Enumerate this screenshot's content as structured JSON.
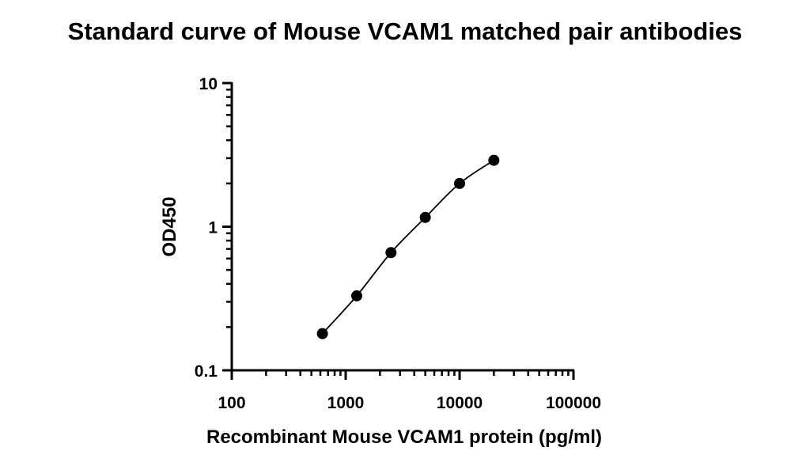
{
  "chart_data": {
    "type": "scatter",
    "title": "Standard curve of Mouse VCAM1 matched pair antibodies",
    "xlabel": "Recombinant Mouse VCAM1 protein (pg/ml)",
    "ylabel": "OD450",
    "xscale": "log",
    "yscale": "log",
    "xlim": [
      100,
      100000
    ],
    "ylim": [
      0.1,
      10
    ],
    "xticks": [
      "100",
      "1000",
      "10000",
      "100000"
    ],
    "yticks": [
      "0.1",
      "1",
      "10"
    ],
    "series": [
      {
        "name": "Standard curve",
        "x": [
          625,
          1250,
          2500,
          5000,
          10000,
          20000
        ],
        "y": [
          0.18,
          0.33,
          0.66,
          1.16,
          2.0,
          2.9
        ],
        "fit_line": true
      }
    ],
    "grid": false,
    "legend": "none"
  }
}
